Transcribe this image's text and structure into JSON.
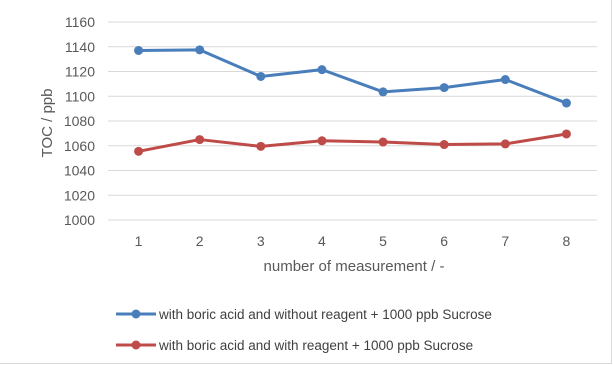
{
  "chart_data": {
    "type": "line",
    "title": "",
    "xlabel": "number of measurement / -",
    "ylabel": "TOC / ppb",
    "categories": [
      "1",
      "2",
      "3",
      "4",
      "5",
      "6",
      "7",
      "8"
    ],
    "ylim": [
      1000,
      1160
    ],
    "yticks": [
      1000,
      1020,
      1040,
      1060,
      1080,
      1100,
      1120,
      1140,
      1160
    ],
    "grid": true,
    "legend_position": "bottom",
    "series": [
      {
        "name": "with boric acid and without reagent + 1000 ppb Sucrose",
        "color": "#4a7ebb",
        "values": [
          1137,
          1137.5,
          1116,
          1121.5,
          1103.5,
          1107,
          1113.5,
          1094.5
        ]
      },
      {
        "name": "with boric acid and with reagent + 1000 ppb Sucrose",
        "color": "#be4b48",
        "values": [
          1055.5,
          1065,
          1059.5,
          1064,
          1063,
          1061,
          1061.5,
          1069.5
        ]
      }
    ]
  }
}
